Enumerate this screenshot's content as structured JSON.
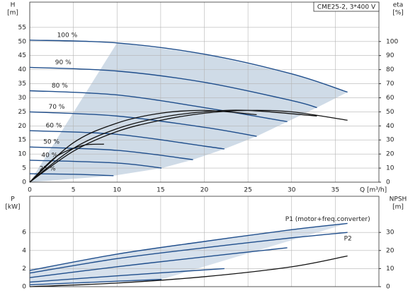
{
  "chart_data": [
    {
      "type": "line",
      "legend_box": "CME25-2, 3*400 V",
      "xlabel": "Q [m³/h]",
      "ylabel": "H",
      "yunit": "[m]",
      "y2label": "eta",
      "y2unit": "[%]",
      "xlim": [
        0,
        40
      ],
      "xticks": [
        0,
        5,
        10,
        15,
        20,
        25,
        30,
        35
      ],
      "ylim": [
        0,
        64
      ],
      "yticks": [
        0,
        5,
        10,
        15,
        20,
        25,
        30,
        35,
        40,
        45,
        50,
        55
      ],
      "y2lim": [
        0,
        128
      ],
      "y2ticks": [
        0,
        10,
        20,
        30,
        40,
        50,
        60,
        70,
        80,
        90,
        100
      ],
      "grid": true,
      "fill_color": "#cfdbe7",
      "series": [
        {
          "name": "100 %",
          "color": "#1f4e8c",
          "x": [
            0,
            10,
            20,
            30,
            36.4
          ],
          "values": [
            50.5,
            49.5,
            45.5,
            38.5,
            32
          ]
        },
        {
          "name": "90 %",
          "color": "#1f4e8c",
          "x": [
            0,
            10,
            20,
            30,
            32.9
          ],
          "values": [
            40.8,
            39.5,
            35.5,
            29,
            26.5
          ]
        },
        {
          "name": "80 %",
          "color": "#1f4e8c",
          "x": [
            0,
            10,
            20,
            29.5
          ],
          "values": [
            32.5,
            31,
            26.5,
            21.5
          ]
        },
        {
          "name": "70 %",
          "color": "#1f4e8c",
          "x": [
            0,
            10,
            20,
            26
          ],
          "values": [
            25,
            23.5,
            19.5,
            16.3
          ]
        },
        {
          "name": "60 %",
          "color": "#1f4e8c",
          "x": [
            0,
            10,
            20,
            22.3
          ],
          "values": [
            18.3,
            17,
            12.8,
            11.8
          ]
        },
        {
          "name": "50 %",
          "color": "#1f4e8c",
          "x": [
            0,
            10,
            18.7
          ],
          "values": [
            12.5,
            11.3,
            8
          ]
        },
        {
          "name": "40 %",
          "color": "#1f4e8c",
          "x": [
            0,
            10,
            15.1
          ],
          "values": [
            7.8,
            6.8,
            5
          ]
        },
        {
          "name": "25 %",
          "color": "#1f4e8c",
          "x": [
            0,
            5,
            9.6
          ],
          "values": [
            3,
            2.8,
            2.3
          ]
        },
        {
          "axis": "y2",
          "color": "#111111",
          "x": [
            0,
            5,
            10,
            15,
            20,
            25,
            30,
            36.4
          ],
          "values": [
            0,
            22,
            36,
            44,
            49,
            51,
            50,
            44
          ]
        },
        {
          "axis": "y2",
          "color": "#111111",
          "x": [
            0,
            5,
            10,
            15,
            20,
            25,
            32.9
          ],
          "values": [
            0,
            24,
            38,
            46,
            50,
            51,
            47
          ]
        },
        {
          "axis": "y2",
          "color": "#111111",
          "x": [
            0,
            5,
            10,
            15,
            20,
            26
          ],
          "values": [
            0,
            28,
            42,
            49,
            51,
            48
          ]
        },
        {
          "axis": "y2",
          "color": "#111111",
          "x": [
            0,
            3,
            6,
            8.5
          ],
          "values": [
            0,
            18,
            26,
            27
          ]
        }
      ]
    },
    {
      "type": "line",
      "ylabel": "P",
      "yunit": "[kW]",
      "y2label": "NPSH",
      "y2unit": "[m]",
      "xlim": [
        0,
        40
      ],
      "ylim": [
        0,
        10
      ],
      "yticks": [
        0,
        2,
        4,
        6
      ],
      "y2lim": [
        0,
        50
      ],
      "y2ticks": [
        0,
        10,
        20,
        30
      ],
      "grid": true,
      "fill_color": "#d7e1ec",
      "series": [
        {
          "name": "P1 (motor+freq.converter)",
          "color": "#1f4e8c",
          "x": [
            0,
            10,
            20,
            30,
            36.4
          ],
          "values": [
            1.8,
            3.6,
            5.0,
            6.3,
            7.0
          ]
        },
        {
          "name": "P2",
          "color": "#1f4e8c",
          "x": [
            0,
            10,
            20,
            30,
            36.4
          ],
          "values": [
            1.5,
            3.1,
            4.3,
            5.4,
            6.0
          ]
        },
        {
          "color": "#1f4e8c",
          "x": [
            0,
            10,
            20,
            29.5
          ],
          "values": [
            1.0,
            2.2,
            3.3,
            4.3
          ]
        },
        {
          "color": "#1f4e8c",
          "x": [
            0,
            10,
            22.3
          ],
          "values": [
            0.5,
            1.2,
            2.0
          ]
        },
        {
          "color": "#1f4e8c",
          "x": [
            0,
            10,
            15.1
          ],
          "values": [
            0.2,
            0.6,
            0.8
          ]
        },
        {
          "axis": "y2",
          "color": "#111111",
          "x": [
            0,
            10,
            20,
            30,
            36.4
          ],
          "values": [
            0,
            2,
            5.5,
            11,
            17
          ]
        }
      ]
    }
  ]
}
